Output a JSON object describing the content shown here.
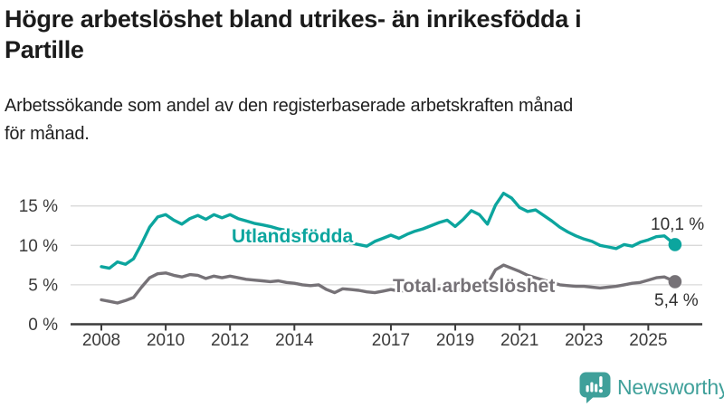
{
  "page": {
    "title_lines": [
      "Högre arbetslöshet bland utrikes- än inrikesfödda i",
      "Partille"
    ],
    "subtitle_lines": [
      "Arbetssökande som andel av den registerbaserade arbetskraften månad",
      "för månad."
    ]
  },
  "branding": {
    "logo_text": "Newsworthy",
    "logo_icon": "bar-chart-speech-bubble-icon",
    "brand_color": "#3fa09a"
  },
  "chart_data": {
    "type": "line",
    "title": "Högre arbetslöshet bland utrikes- än inrikesfödda i Partille",
    "subtitle": "Arbetssökande som andel av den registerbaserade arbetskraften månad för månad.",
    "unit": "%",
    "grid": true,
    "legend_position": "inline-labels",
    "xlim": [
      2007.0,
      2026.7
    ],
    "ylim": [
      0,
      17.5
    ],
    "xticks": [
      2008,
      2010,
      2012,
      2014,
      2017,
      2019,
      2021,
      2023,
      2025
    ],
    "yticks": [
      0,
      5,
      10,
      15
    ],
    "ytick_labels": [
      "0 %",
      "5 %",
      "10 %",
      "15 %"
    ],
    "x": [
      2008,
      2008.25,
      2008.5,
      2008.75,
      2009,
      2009.25,
      2009.5,
      2009.75,
      2010,
      2010.25,
      2010.5,
      2010.75,
      2011,
      2011.25,
      2011.5,
      2011.75,
      2012,
      2012.25,
      2012.5,
      2012.75,
      2013,
      2013.25,
      2013.5,
      2013.75,
      2014,
      2014.25,
      2014.5,
      2014.75,
      2015,
      2015.25,
      2015.5,
      2015.75,
      2016,
      2016.25,
      2016.5,
      2016.75,
      2017,
      2017.25,
      2017.5,
      2017.75,
      2018,
      2018.25,
      2018.5,
      2018.75,
      2019,
      2019.25,
      2019.5,
      2019.75,
      2020,
      2020.25,
      2020.5,
      2020.75,
      2021,
      2021.25,
      2021.5,
      2021.75,
      2022,
      2022.25,
      2022.5,
      2022.75,
      2023,
      2023.25,
      2023.5,
      2023.75,
      2024,
      2024.25,
      2024.5,
      2024.75,
      2025,
      2025.25,
      2025.5,
      2025.83
    ],
    "series": [
      {
        "key": "utlandsfodda",
        "name": "Utlandsfödda",
        "color": "#0ca59e",
        "end_value": 10.1,
        "end_label": "10,1 %",
        "values": [
          7.3,
          7.1,
          7.9,
          7.6,
          8.3,
          10.2,
          12.3,
          13.6,
          13.9,
          13.2,
          12.7,
          13.4,
          13.8,
          13.3,
          13.9,
          13.5,
          13.9,
          13.4,
          13.1,
          12.8,
          12.6,
          12.4,
          12.1,
          11.9,
          11.7,
          11.5,
          11.3,
          11.1,
          10.9,
          10.7,
          10.5,
          10.3,
          10.1,
          9.9,
          10.5,
          10.9,
          11.3,
          10.9,
          11.4,
          11.8,
          12.1,
          12.5,
          12.9,
          13.2,
          12.4,
          13.3,
          14.4,
          13.9,
          12.7,
          15.1,
          16.6,
          16.0,
          14.8,
          14.3,
          14.5,
          13.8,
          13.1,
          12.3,
          11.7,
          11.2,
          10.8,
          10.5,
          10.0,
          9.8,
          9.6,
          10.1,
          9.9,
          10.4,
          10.7,
          11.1,
          11.2,
          10.1
        ]
      },
      {
        "key": "total-arbetsloshet",
        "name": "Total arbetslöshet",
        "color": "#767277",
        "end_value": 5.4,
        "end_label": "5,4 %",
        "values": [
          3.1,
          2.9,
          2.7,
          3.0,
          3.4,
          4.7,
          5.9,
          6.4,
          6.5,
          6.2,
          6.0,
          6.3,
          6.2,
          5.8,
          6.1,
          5.9,
          6.1,
          5.9,
          5.7,
          5.6,
          5.5,
          5.4,
          5.5,
          5.3,
          5.2,
          5.0,
          4.9,
          5.0,
          4.4,
          4.0,
          4.5,
          4.4,
          4.3,
          4.1,
          4.0,
          4.2,
          4.4,
          4.2,
          4.3,
          4.5,
          4.4,
          4.3,
          4.5,
          4.4,
          4.3,
          4.5,
          4.8,
          4.7,
          5.1,
          6.9,
          7.5,
          7.1,
          6.7,
          6.2,
          5.9,
          5.6,
          5.3,
          5.0,
          4.9,
          4.8,
          4.8,
          4.7,
          4.6,
          4.7,
          4.8,
          5.0,
          5.2,
          5.3,
          5.6,
          5.9,
          6.0,
          5.4
        ]
      }
    ]
  }
}
